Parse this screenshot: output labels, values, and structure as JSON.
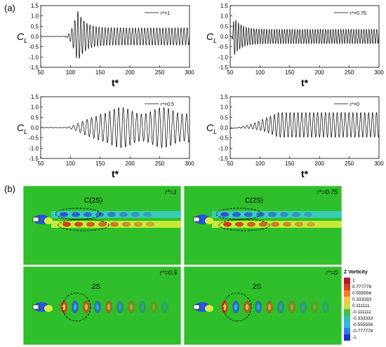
{
  "labels": {
    "part_a": "(a)",
    "part_b": "(b)"
  },
  "colors": {
    "line": "#000000",
    "vort_background": "#2fbf2a",
    "wake_band": "#d6ef3a",
    "wake_band_cyan": "#3fd0d8",
    "positive": "#d23a1e",
    "negative": "#2a55d8"
  },
  "chart_data": [
    {
      "type": "line",
      "legend": "r*=1",
      "xlabel": "t*",
      "ylabel": "C_L",
      "xlim": [
        50,
        300
      ],
      "ylim": [
        -1.5,
        1.5
      ],
      "xticks": [
        50,
        100,
        150,
        200,
        250,
        300
      ],
      "yticks": [
        -1.5,
        -1.0,
        -0.5,
        0.0,
        0.5,
        1.0,
        1.5
      ],
      "signal": {
        "onset": 90,
        "peak_time": 112,
        "peak_amplitude": 1.25,
        "steady_amplitude": 0.42,
        "period": 5.1,
        "beat_amplitude": 0.0,
        "beat_period": 0
      }
    },
    {
      "type": "line",
      "legend": "r*=0.75",
      "xlabel": "t*",
      "ylabel": "C_L",
      "xlim": [
        50,
        300
      ],
      "ylim": [
        -1.5,
        1.5
      ],
      "xticks": [
        50,
        100,
        150,
        200,
        250,
        300
      ],
      "yticks": [
        -1.5,
        -1.0,
        -0.5,
        0.0,
        0.5,
        1.0,
        1.5
      ],
      "signal": {
        "onset": 52,
        "peak_time": 56,
        "peak_amplitude": 0.95,
        "steady_amplitude": 0.35,
        "period": 4.3,
        "beat_amplitude": 0.0,
        "beat_period": 0
      }
    },
    {
      "type": "line",
      "legend": "r*=0.5",
      "xlabel": "t*",
      "ylabel": "C_L",
      "xlim": [
        50,
        300
      ],
      "ylim": [
        -1.5,
        1.5
      ],
      "xticks": [
        50,
        100,
        150,
        200,
        250,
        300
      ],
      "yticks": [
        -1.5,
        -1.0,
        -0.5,
        0.0,
        0.5,
        1.0,
        1.5
      ],
      "signal": {
        "onset": 82,
        "peak_time": 150,
        "peak_amplitude": 0.82,
        "steady_amplitude": 0.82,
        "period": 7.6,
        "beat_amplitude": 0.2,
        "beat_period": 70
      }
    },
    {
      "type": "line",
      "legend": "r*=0",
      "xlabel": "t*",
      "ylabel": "C_L",
      "xlim": [
        50,
        300
      ],
      "ylim": [
        -1.5,
        1.5
      ],
      "xticks": [
        50,
        100,
        150,
        200,
        250,
        300
      ],
      "yticks": [
        -1.5,
        -1.0,
        -0.5,
        0.0,
        0.5,
        1.0,
        1.5
      ],
      "signal": {
        "onset": 50,
        "peak_time": 130,
        "peak_amplitude": 0.6,
        "steady_amplitude": 0.6,
        "period": 6.6,
        "beat_amplitude": 0.0,
        "beat_period": 0
      }
    }
  ],
  "vorticity_panels": [
    {
      "label": "r*=1",
      "annotation": "C(2S)",
      "mode": "coupled"
    },
    {
      "label": "r*=0.75",
      "annotation": "C(2S)",
      "mode": "coupled"
    },
    {
      "label": "r*=0.5",
      "annotation": "2S",
      "mode": "single"
    },
    {
      "label": "r*=0",
      "annotation": "2S",
      "mode": "single"
    }
  ],
  "colorbar": {
    "title": "Z Vorticity",
    "ticks": [
      "1",
      "0.777778",
      "0.555556",
      "0.333333",
      "0.111111",
      "-0.111111",
      "-0.333333",
      "-0.555556",
      "-0.777778",
      "-1"
    ],
    "colors": [
      "#b2182b",
      "#d6401f",
      "#ef7b2a",
      "#f5c542",
      "#c9e23a",
      "#3fc43a",
      "#2fc2a6",
      "#35b5e8",
      "#2f7ee8",
      "#1f33c8"
    ]
  }
}
